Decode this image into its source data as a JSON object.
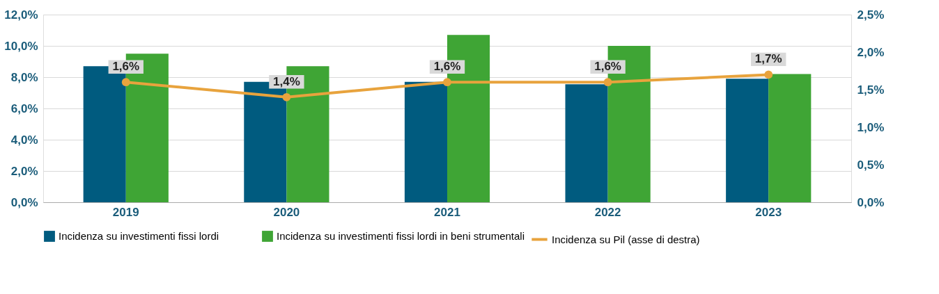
{
  "chart_data": {
    "type": "bar",
    "categories": [
      "2019",
      "2020",
      "2021",
      "2022",
      "2023"
    ],
    "series": [
      {
        "name": "Incidenza su investimenti fissi lordi",
        "color": "#005b7f",
        "values": [
          8.7,
          7.7,
          7.7,
          7.55,
          7.9
        ]
      },
      {
        "name": "Incidenza su investimenti fissi lordi in beni strumentali",
        "color": "#3fa535",
        "values": [
          9.5,
          8.7,
          10.7,
          10.0,
          8.2
        ]
      },
      {
        "name": "Incidenza su Pil (asse di destra)",
        "type": "line",
        "axis": "y2",
        "color": "#e8a33d",
        "values": [
          1.6,
          1.4,
          1.6,
          1.6,
          1.7
        ],
        "value_labels": [
          "1,6%",
          "1,4%",
          "1,6%",
          "1,6%",
          "1,7%"
        ]
      }
    ],
    "ylim": [
      0,
      12
    ],
    "yticks": [
      {
        "value": 0,
        "label": "0,0%"
      },
      {
        "value": 2,
        "label": "2,0%"
      },
      {
        "value": 4,
        "label": "4,0%"
      },
      {
        "value": 6,
        "label": "6,0%"
      },
      {
        "value": 8,
        "label": "8,0%"
      },
      {
        "value": 10,
        "label": "10,0%"
      },
      {
        "value": 12,
        "label": "12,0%"
      }
    ],
    "y2lim": [
      0,
      2.5
    ],
    "y2ticks": [
      {
        "value": 0,
        "label": "0,0%"
      },
      {
        "value": 0.5,
        "label": "0,5%"
      },
      {
        "value": 1,
        "label": "1,0%"
      },
      {
        "value": 1.5,
        "label": "1,5%"
      },
      {
        "value": 2,
        "label": "2,0%"
      },
      {
        "value": 2.5,
        "label": "2,5%"
      }
    ],
    "grid": "y",
    "legend": "bottom",
    "marker": "circle",
    "line_style": "solid"
  }
}
